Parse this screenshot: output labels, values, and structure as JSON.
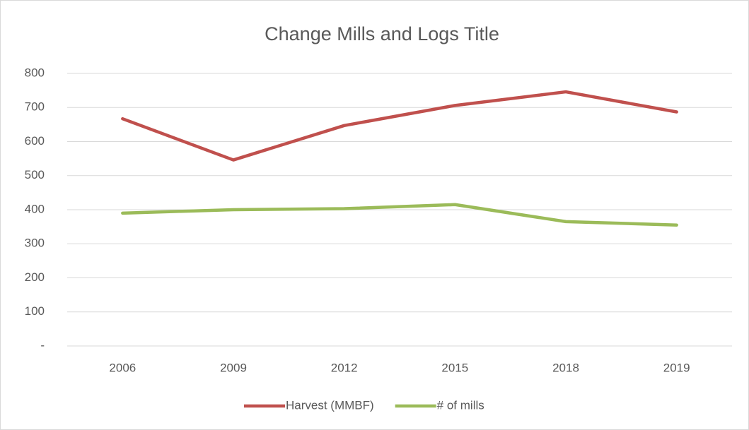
{
  "chart_data": {
    "type": "line",
    "title": "Change Mills and Logs Title",
    "categories": [
      "2006",
      "2009",
      "2012",
      "2015",
      "2018",
      "2019"
    ],
    "series": [
      {
        "name": "Harvest (MMBF)",
        "color": "#c0504d",
        "values": [
          667,
          546,
          647,
          706,
          746,
          687
        ]
      },
      {
        "name": "# of mills",
        "color": "#9bbb59",
        "values": [
          390,
          400,
          403,
          415,
          365,
          355
        ]
      }
    ],
    "ylim": [
      0,
      800
    ],
    "yticks": [
      {
        "value": 0,
        "label": "-"
      },
      100,
      200,
      300,
      400,
      500,
      600,
      700,
      800
    ],
    "grid": true,
    "legend": "bottom"
  }
}
